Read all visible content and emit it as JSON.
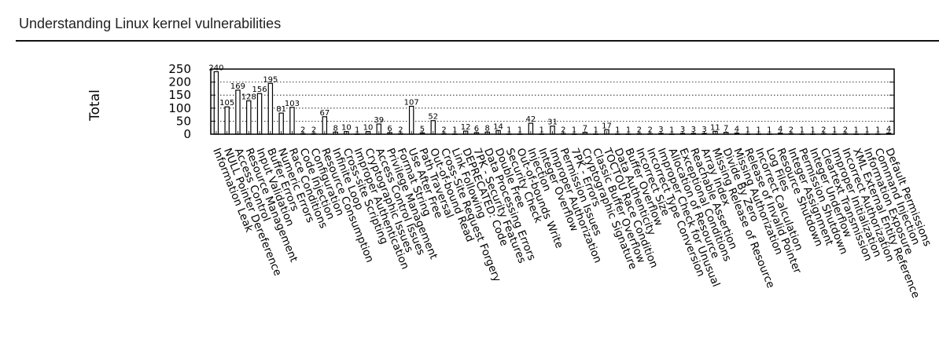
{
  "page": {
    "title": "Understanding Linux kernel vulnerabilities"
  },
  "chart_data": {
    "type": "bar",
    "title": "",
    "xlabel": "",
    "ylabel": "Total",
    "ylim": [
      0,
      250
    ],
    "yticks": [
      0,
      50,
      100,
      150,
      200,
      250
    ],
    "grid": "horizontal-dotted",
    "legend": "none",
    "bar_fill": "#ffffff",
    "bar_stroke": "#000000",
    "categories": [
      "Information Leak",
      "NULL Pointer Dereference",
      "Access Control",
      "Resource Management",
      "Input Validation",
      "Buffer Errors",
      "Numeric Errors",
      "Race Conditions",
      "Code Injection",
      "Configuration",
      "Resource Consumption",
      "Infinite Loop",
      "Cross-site Scripting",
      "Improper Authentication",
      "Cryptographic Issues",
      "Access Control Issues",
      "Privilege Management",
      "Format String",
      "Use After Free",
      "Path Traversal",
      "Out-of-bound Read",
      "Cross-Site Request Forgery",
      "Link Following",
      "DEPRECATED: Code",
      "7PK - Security Features",
      "Data Processing Errors",
      "Double Free",
      "Security Check",
      "Out-of-bounds Write",
      "Injection",
      "Integer Overflow",
      "Improper Authorization",
      "Permission Issues",
      "7PK - Errors",
      "Cryptographic Signature",
      "Classic Buffer Overflow",
      "TOCTOU Race Condition",
      "Data Authenticity",
      "Buffer Overflow",
      "Incorrect Size",
      "Incorrect Type Conversion",
      "Improper Check for Unusual",
      "Allocation of Resource",
      "Exceptional Conditions",
      "Reachable Assertion",
      "Array Index",
      "Missing Release of Resource",
      "Divide By Zero",
      "Missing Authorization",
      "Release of Invalid Pointer",
      "Incorrect Calculation",
      "Log Files",
      "Resource Shutdown",
      "Integer Assignment",
      "Permission Shutdown",
      "Integer Underflow",
      "Cleartext Transmission",
      "Improper Initialization",
      "Incorrect Authorization",
      "XML External Entity Reference",
      "Information Exposure",
      "Command Injection",
      "Default Permissions"
    ],
    "values": [
      240,
      105,
      169,
      128,
      156,
      195,
      81,
      103,
      2,
      2,
      67,
      8,
      10,
      1,
      10,
      39,
      6,
      2,
      107,
      5,
      52,
      2,
      1,
      12,
      6,
      8,
      14,
      1,
      1,
      42,
      1,
      31,
      2,
      1,
      7,
      1,
      17,
      1,
      1,
      2,
      2,
      3,
      1,
      3,
      3,
      3,
      11,
      7,
      4,
      1,
      1,
      1,
      4,
      2,
      1,
      1,
      2,
      1,
      2,
      1,
      1,
      1,
      4
    ]
  }
}
